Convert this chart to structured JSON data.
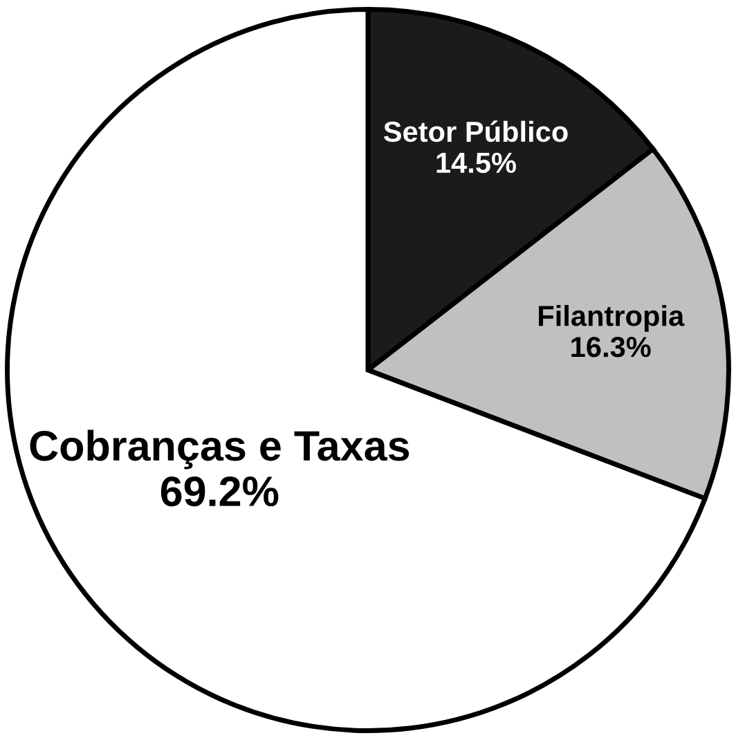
{
  "chart_data": {
    "type": "pie",
    "categories": [
      "Setor Público",
      "Filantropia",
      "Cobranças e Taxas"
    ],
    "values": [
      14.5,
      16.3,
      69.2
    ],
    "colors": [
      "#1c1a1a",
      "#c0c0c0",
      "#ffffff"
    ],
    "value_labels": [
      "14.5%",
      "16.3%",
      "69.2%"
    ]
  }
}
